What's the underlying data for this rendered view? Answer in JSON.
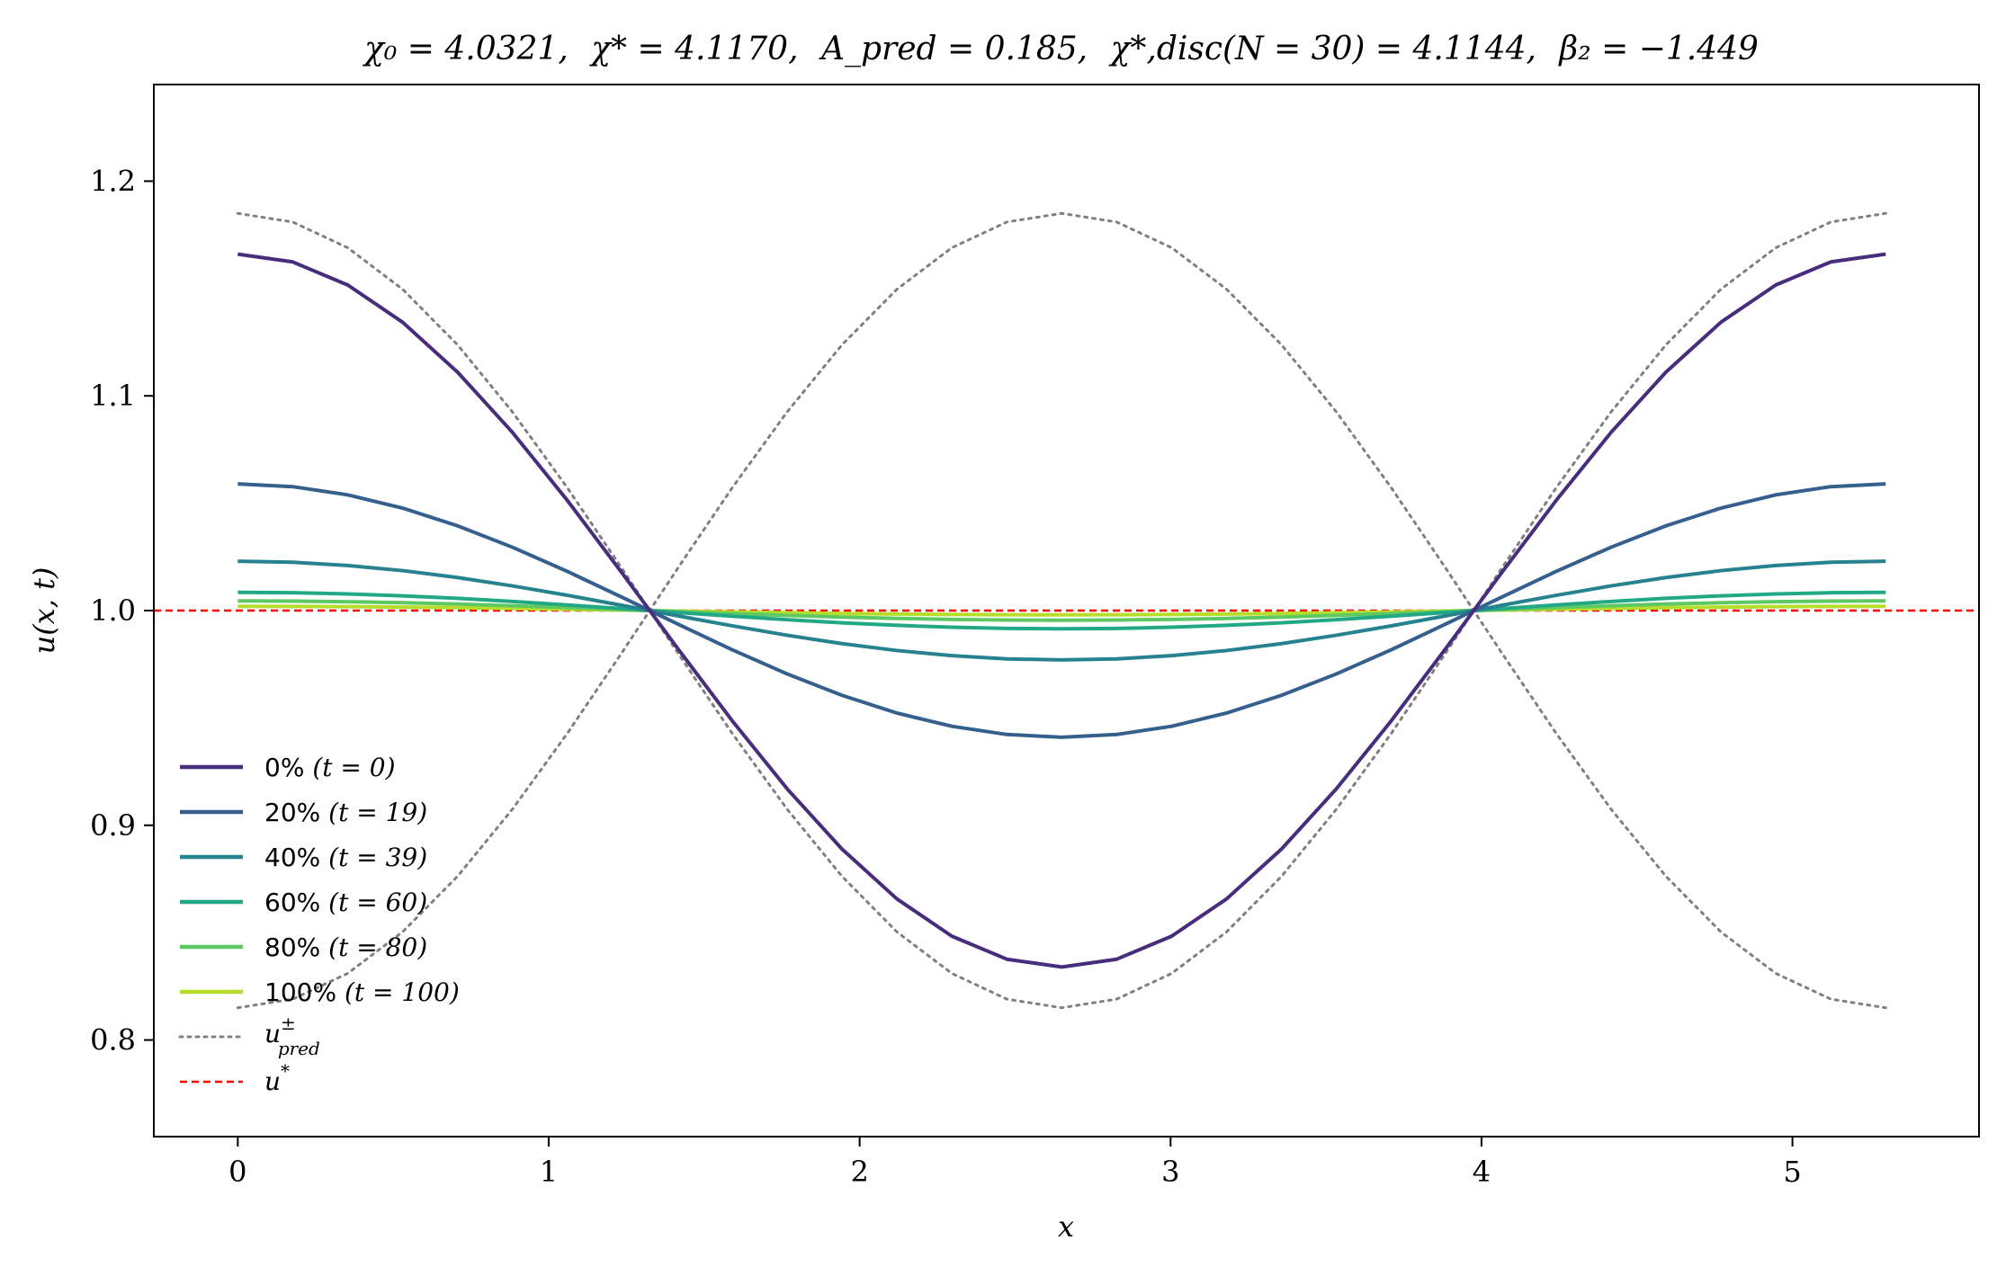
{
  "chart_data": {
    "type": "line",
    "title": "χ₀ = 4.0321,  χ* = 4.1170,  A_pred = 0.185,  χ*,disc(N = 30) = 4.1144,  β₂ = −1.449",
    "title_parts": {
      "chi0": "χ₀ = 4.0321,",
      "chistar": "χ* = 4.1170,",
      "apred": "A_pred = 0.185,",
      "chidisc": "χ*,disc(N = 30) = 4.1144,",
      "beta2": "β₂ = −1.449"
    },
    "xlabel": "x",
    "ylabel": "u(x, t)",
    "xlim": [
      -0.27,
      5.6
    ],
    "ylim": [
      0.755,
      1.245
    ],
    "xticks": [
      0,
      1,
      2,
      3,
      4,
      5
    ],
    "xtick_labels": [
      "0",
      "1",
      "2",
      "3",
      "4",
      "5"
    ],
    "yticks": [
      0.8,
      0.9,
      1.0,
      1.1,
      1.2
    ],
    "ytick_labels": [
      "0.8",
      "0.9",
      "1.0",
      "1.1",
      "1.2"
    ],
    "grid": false,
    "legend_position": "lower-left",
    "domain_length": 5.3,
    "n_points": 31,
    "series": [
      {
        "name": "0% (t = 0)",
        "label_pct": "0%",
        "label_t": "(t = 0)",
        "amplitude": 0.166,
        "color": "#472d7b",
        "style": "solid"
      },
      {
        "name": "20% (t = 19)",
        "label_pct": "20%",
        "label_t": "(t = 19)",
        "amplitude": 0.059,
        "color": "#355f8d",
        "style": "solid"
      },
      {
        "name": "40% (t = 39)",
        "label_pct": "40%",
        "label_t": "(t = 39)",
        "amplitude": 0.023,
        "color": "#26828e",
        "style": "solid"
      },
      {
        "name": "60% (t = 60)",
        "label_pct": "60%",
        "label_t": "(t = 60)",
        "amplitude": 0.0085,
        "color": "#22a884",
        "style": "solid"
      },
      {
        "name": "80% (t = 80)",
        "label_pct": "80%",
        "label_t": "(t = 80)",
        "amplitude": 0.0045,
        "color": "#5ec962",
        "style": "solid"
      },
      {
        "name": "100% (t = 100)",
        "label_pct": "100%",
        "label_t": "(t = 100)",
        "amplitude": 0.002,
        "color": "#b5de2b",
        "style": "solid"
      }
    ],
    "bounds": {
      "name": "u±pred",
      "base": "u",
      "sup": "±",
      "sub": "pred",
      "amplitude": 0.185,
      "color": "#808080",
      "style": "dotted"
    },
    "equilibrium": {
      "name": "u*",
      "base": "u",
      "sup": "*",
      "value": 1.0,
      "color": "#ff0000",
      "style": "dashed"
    }
  }
}
